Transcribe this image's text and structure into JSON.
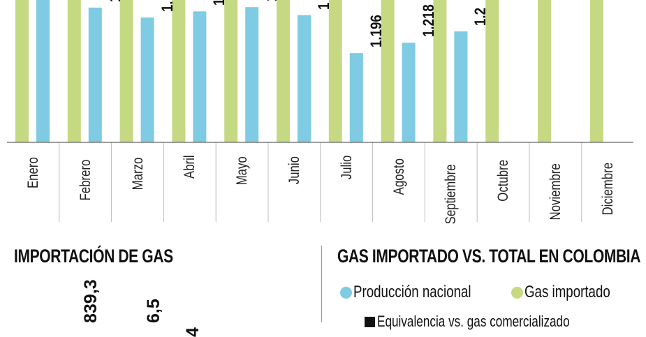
{
  "chart_data": [
    {
      "type": "bar",
      "categories": [
        "Enero",
        "Febrero",
        "Marzo",
        "Abril",
        "Mayo",
        "Junio",
        "Julio",
        "Agosto",
        "Septiembre",
        "Octubre",
        "Noviembre",
        "Diciembre"
      ],
      "series": [
        {
          "name": "Gas importado",
          "color": "#c5d982",
          "values": [
            null,
            null,
            null,
            null,
            null,
            null,
            null,
            null,
            null,
            null,
            null,
            null
          ],
          "note_visible": "all bars extend beyond the visible top"
        },
        {
          "name": "Producción nacional",
          "color": "#7ecbe3",
          "values": [
            1310,
            1292,
            1271,
            1284,
            1293,
            1276,
            1196,
            1218,
            1242,
            null,
            null,
            null
          ]
        }
      ],
      "data_labels": [
        "",
        "1",
        "1.",
        "1",
        "1",
        "1",
        "1.196",
        "1.218",
        "1.2",
        "",
        "",
        ""
      ],
      "grid": false
    },
    {
      "type": "bar",
      "title": "IMPORTACIÓN DE GAS",
      "data_labels": [
        "839,3",
        "6,5",
        "4"
      ]
    }
  ],
  "right_panel": {
    "title": "GAS IMPORTADO VS. TOTAL EN COLOMBIA",
    "legend": [
      {
        "label": "Producción nacional",
        "color": "#7ecbe3"
      },
      {
        "label": "Gas importado",
        "color": "#c5d982"
      }
    ],
    "legend_extra": "Equivalencia vs. gas comercializado"
  }
}
